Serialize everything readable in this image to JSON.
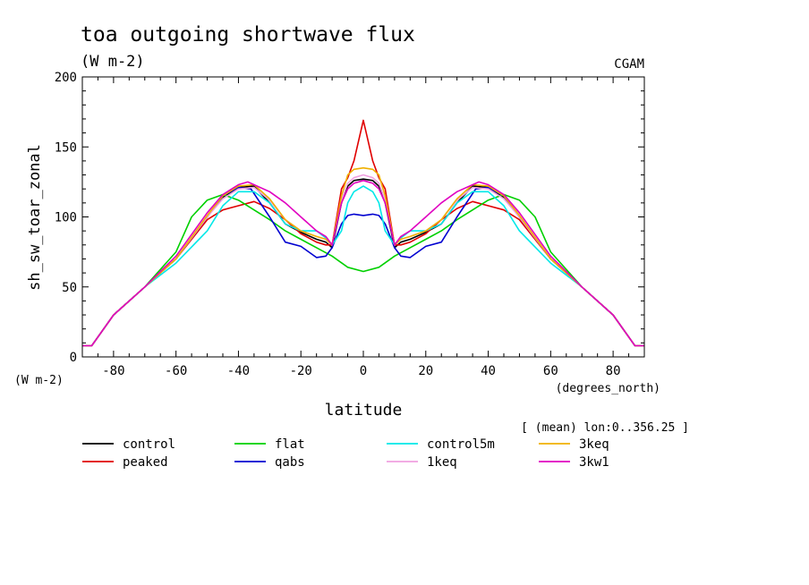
{
  "chart_data": {
    "type": "line",
    "title": "toa outgoing shortwave flux",
    "subtitle": "(W m-2)",
    "source_label": "CGAM",
    "ylabel": "sh_sw_toar_zonal",
    "y_units": "(W m-2)",
    "xlabel": "latitude",
    "x_units": "(degrees_north)",
    "note": "[ (mean) lon:0..356.25 ]",
    "xlim": [
      -90,
      90
    ],
    "ylim": [
      0,
      200
    ],
    "x_ticks": [
      -80,
      -60,
      -40,
      -20,
      0,
      20,
      40,
      60,
      80
    ],
    "x_tick_labels": [
      "-80",
      "-60",
      "-40",
      "-20",
      "0",
      "20",
      "40",
      "60",
      "80"
    ],
    "y_ticks": [
      0,
      50,
      100,
      150,
      200
    ],
    "y_tick_labels": [
      "0",
      "50",
      "100",
      "150",
      "200"
    ],
    "grid": false,
    "legend_position": "bottom",
    "series": [
      {
        "name": "control",
        "color": "#000000",
        "x": [
          -90,
          -87,
          -80,
          -70,
          -60,
          -50,
          -45,
          -40,
          -35,
          -30,
          -25,
          -20,
          -15,
          -12,
          -10,
          -7,
          -5,
          -3,
          0,
          3,
          5,
          7,
          10,
          12,
          15,
          20,
          25,
          30,
          35,
          40,
          45,
          50,
          60,
          70,
          80,
          87,
          90
        ],
        "y": [
          8,
          8,
          30,
          50,
          70,
          100,
          114,
          121,
          122,
          110,
          95,
          89,
          84,
          82,
          78,
          110,
          122,
          126,
          127,
          126,
          122,
          110,
          78,
          82,
          84,
          89,
          95,
          110,
          122,
          121,
          114,
          100,
          70,
          50,
          30,
          8,
          8
        ]
      },
      {
        "name": "peaked",
        "color": "#e00000",
        "x": [
          -90,
          -87,
          -80,
          -70,
          -60,
          -50,
          -45,
          -40,
          -35,
          -30,
          -25,
          -20,
          -15,
          -12,
          -10,
          -7,
          -5,
          -3,
          0,
          3,
          5,
          7,
          10,
          12,
          15,
          20,
          25,
          30,
          35,
          40,
          45,
          50,
          60,
          70,
          80,
          87,
          90
        ],
        "y": [
          8,
          8,
          30,
          50,
          70,
          98,
          105,
          108,
          111,
          106,
          98,
          88,
          82,
          80,
          80,
          120,
          128,
          140,
          169,
          140,
          128,
          120,
          80,
          80,
          82,
          88,
          98,
          106,
          111,
          108,
          105,
          98,
          70,
          50,
          30,
          8,
          8
        ]
      },
      {
        "name": "flat",
        "color": "#00d000",
        "x": [
          -90,
          -87,
          -80,
          -70,
          -60,
          -55,
          -50,
          -45,
          -40,
          -35,
          -30,
          -25,
          -20,
          -15,
          -10,
          -5,
          0,
          5,
          10,
          15,
          20,
          25,
          30,
          35,
          40,
          45,
          50,
          55,
          60,
          70,
          80,
          87,
          90
        ],
        "y": [
          8,
          8,
          30,
          50,
          75,
          100,
          112,
          116,
          112,
          105,
          98,
          90,
          84,
          78,
          72,
          64,
          61,
          64,
          72,
          78,
          84,
          90,
          98,
          105,
          112,
          116,
          112,
          100,
          75,
          50,
          30,
          8,
          8
        ]
      },
      {
        "name": "qabs",
        "color": "#0000d0",
        "x": [
          -90,
          -87,
          -80,
          -70,
          -60,
          -50,
          -45,
          -40,
          -36,
          -30,
          -25,
          -20,
          -15,
          -12,
          -10,
          -7,
          -5,
          -3,
          0,
          3,
          5,
          7,
          10,
          12,
          15,
          20,
          25,
          30,
          36,
          40,
          45,
          50,
          60,
          70,
          80,
          87,
          90
        ],
        "y": [
          8,
          8,
          30,
          50,
          70,
          100,
          115,
          121,
          120,
          100,
          82,
          79,
          71,
          72,
          78,
          95,
          101,
          102,
          101,
          102,
          101,
          95,
          78,
          72,
          71,
          79,
          82,
          100,
          120,
          121,
          115,
          100,
          70,
          50,
          30,
          8,
          8
        ]
      },
      {
        "name": "control5m",
        "color": "#00e8e8",
        "x": [
          -90,
          -87,
          -80,
          -70,
          -60,
          -50,
          -45,
          -40,
          -35,
          -30,
          -25,
          -20,
          -15,
          -12,
          -10,
          -7,
          -5,
          -3,
          0,
          3,
          5,
          7,
          10,
          12,
          15,
          20,
          25,
          30,
          35,
          40,
          45,
          50,
          60,
          70,
          80,
          87,
          90
        ],
        "y": [
          8,
          8,
          30,
          50,
          67,
          90,
          108,
          118,
          118,
          110,
          95,
          90,
          90,
          85,
          80,
          90,
          110,
          118,
          122,
          118,
          110,
          90,
          80,
          85,
          90,
          90,
          95,
          110,
          118,
          118,
          108,
          90,
          67,
          50,
          30,
          8,
          8
        ]
      },
      {
        "name": "1keq",
        "color": "#f0a0e0",
        "x": [
          -90,
          -87,
          -80,
          -70,
          -60,
          -50,
          -45,
          -40,
          -35,
          -30,
          -25,
          -20,
          -15,
          -12,
          -10,
          -7,
          -5,
          -3,
          0,
          3,
          5,
          7,
          10,
          12,
          15,
          20,
          25,
          30,
          35,
          40,
          45,
          50,
          60,
          70,
          80,
          87,
          90
        ],
        "y": [
          8,
          8,
          30,
          50,
          70,
          100,
          113,
          120,
          121,
          112,
          98,
          90,
          86,
          84,
          80,
          112,
          124,
          128,
          130,
          128,
          124,
          112,
          80,
          84,
          86,
          90,
          98,
          112,
          121,
          120,
          113,
          100,
          70,
          50,
          30,
          8,
          8
        ]
      },
      {
        "name": "3keq",
        "color": "#f0b000",
        "x": [
          -90,
          -87,
          -80,
          -70,
          -60,
          -50,
          -45,
          -40,
          -35,
          -30,
          -25,
          -20,
          -15,
          -12,
          -10,
          -7,
          -5,
          -3,
          0,
          3,
          5,
          7,
          10,
          12,
          15,
          20,
          25,
          30,
          35,
          40,
          45,
          50,
          60,
          70,
          80,
          87,
          90
        ],
        "y": [
          8,
          8,
          30,
          50,
          70,
          101,
          115,
          122,
          123,
          113,
          98,
          90,
          86,
          84,
          80,
          115,
          130,
          134,
          135,
          134,
          130,
          115,
          80,
          84,
          86,
          90,
          98,
          113,
          123,
          122,
          115,
          101,
          70,
          50,
          30,
          8,
          8
        ]
      },
      {
        "name": "3kw1",
        "color": "#e000c0",
        "x": [
          -90,
          -87,
          -80,
          -70,
          -60,
          -50,
          -45,
          -40,
          -37,
          -30,
          -25,
          -20,
          -15,
          -12,
          -10,
          -7,
          -5,
          -3,
          0,
          3,
          5,
          7,
          10,
          12,
          15,
          20,
          25,
          30,
          37,
          40,
          45,
          50,
          60,
          70,
          80,
          87,
          90
        ],
        "y": [
          8,
          8,
          30,
          50,
          72,
          103,
          116,
          123,
          125,
          118,
          110,
          100,
          90,
          86,
          80,
          110,
          120,
          124,
          126,
          124,
          120,
          110,
          80,
          86,
          90,
          100,
          110,
          118,
          125,
          123,
          116,
          103,
          72,
          50,
          30,
          8,
          8
        ]
      }
    ],
    "legend_order": [
      "control",
      "flat",
      "control5m",
      "3keq",
      "peaked",
      "qabs",
      "1keq",
      "3kw1"
    ]
  }
}
